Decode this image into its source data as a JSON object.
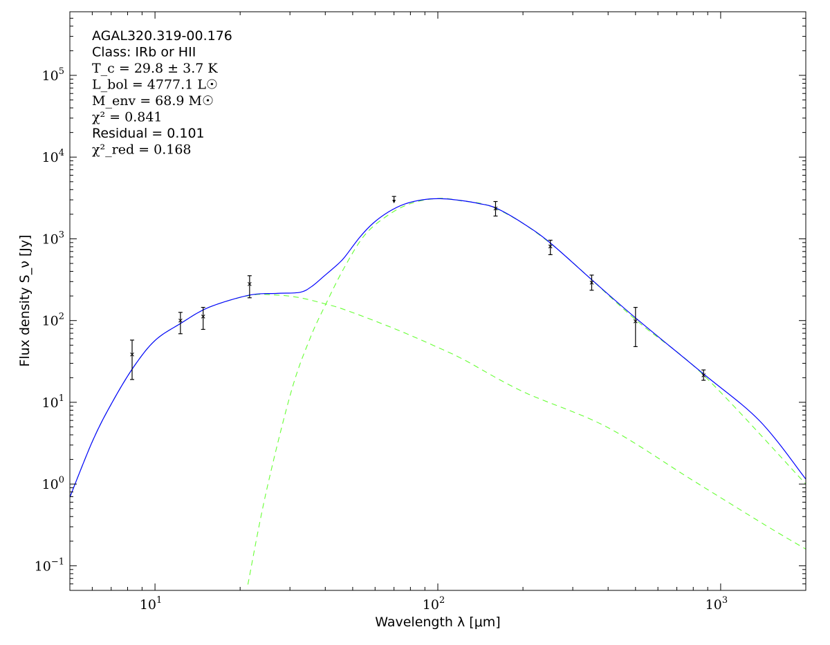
{
  "chart_data": {
    "type": "line",
    "title": "",
    "xlabel": "Wavelength λ [μm]",
    "ylabel": "Flux density S_ν [Jy]",
    "xscale": "log",
    "yscale": "log",
    "xlim": [
      5,
      2000
    ],
    "ylim": [
      0.05,
      600000
    ],
    "grid": false,
    "x_ticks": [
      {
        "value": 10,
        "label": "10",
        "exp": "1"
      },
      {
        "value": 100,
        "label": "10",
        "exp": "2"
      },
      {
        "value": 1000,
        "label": "10",
        "exp": "3"
      }
    ],
    "y_ticks": [
      {
        "value": 0.1,
        "label": "10",
        "exp": "−1"
      },
      {
        "value": 1,
        "label": "10",
        "exp": "0"
      },
      {
        "value": 10,
        "label": "10",
        "exp": "1"
      },
      {
        "value": 100,
        "label": "10",
        "exp": "2"
      },
      {
        "value": 1000,
        "label": "10",
        "exp": "3"
      },
      {
        "value": 10000,
        "label": "10",
        "exp": "4"
      },
      {
        "value": 100000,
        "label": "10",
        "exp": "5"
      }
    ],
    "annotations": [
      {
        "text": "AGAL320.319-00.176",
        "style": "sans"
      },
      {
        "text": "Class: IRb or HII",
        "style": "sans"
      },
      {
        "text": "T_c = 29.8 ± 3.7 K",
        "style": "math"
      },
      {
        "text": "L_bol = 4777.1 L☉",
        "style": "math"
      },
      {
        "text": "M_env = 68.9 M☉",
        "style": "math"
      },
      {
        "text": "χ² = 0.841",
        "style": "math"
      },
      {
        "text": "Residual = 0.101",
        "style": "sans"
      },
      {
        "text": "χ²_red = 0.168",
        "style": "math"
      }
    ],
    "points": [
      {
        "x": 8.3,
        "y": 38.5,
        "lo": 19,
        "hi": 57.7
      },
      {
        "x": 12.3,
        "y": 100,
        "lo": 69,
        "hi": 126
      },
      {
        "x": 14.8,
        "y": 112,
        "lo": 78,
        "hi": 145
      },
      {
        "x": 21.6,
        "y": 280,
        "lo": 190,
        "hi": 354
      },
      {
        "x": 160,
        "y": 2350,
        "lo": 1900,
        "hi": 2860
      },
      {
        "x": 250,
        "y": 807,
        "lo": 640,
        "hi": 962
      },
      {
        "x": 350,
        "y": 291,
        "lo": 235,
        "hi": 360
      },
      {
        "x": 500,
        "y": 98,
        "lo": 48,
        "hi": 145
      },
      {
        "x": 870,
        "y": 21.4,
        "lo": 18.6,
        "hi": 24.9
      }
    ],
    "upper_limits": [
      {
        "x": 70,
        "y": 3300
      }
    ],
    "series": [
      {
        "key": "total",
        "color": "#0000ff",
        "dash": "solid",
        "x": [
          5,
          6,
          7,
          8.4,
          10,
          12.3,
          15.5,
          21.6,
          27,
          32.6,
          36,
          39.5,
          44.9,
          47.4,
          53,
          59,
          67,
          76,
          88,
          102,
          120,
          140,
          161,
          200,
          250,
          350,
          500,
          860,
          1375,
          2000
        ],
        "y": [
          0.69,
          3.3,
          9.5,
          27,
          57,
          92,
          145,
          205,
          215,
          222,
          265,
          347,
          510,
          630,
          1050,
          1550,
          2140,
          2650,
          3000,
          3100,
          2950,
          2700,
          2370,
          1550,
          890,
          316,
          108,
          23,
          5.9,
          1.15
        ]
      },
      {
        "key": "warm",
        "color": "#66ff33",
        "dash": "dashed",
        "x": [
          5,
          6,
          7,
          8.4,
          10,
          12.3,
          15.5,
          21.6,
          27,
          32.6,
          40,
          47.4,
          70,
          100,
          124,
          200,
          395,
          800,
          1448,
          2000
        ],
        "y": [
          0.69,
          3.3,
          9.5,
          27,
          57,
          92,
          145,
          203,
          205,
          190,
          160,
          134,
          80,
          47,
          33,
          13.5,
          5.0,
          1.1,
          0.31,
          0.16
        ]
      },
      {
        "key": "cold",
        "color": "#66ff33",
        "dash": "dashed",
        "x": [
          21.3,
          24.7,
          30.3,
          35.3,
          40.2,
          46.7,
          55,
          66,
          80,
          100,
          120,
          161,
          250,
          500,
          870,
          2000
        ],
        "y": [
          0.059,
          0.79,
          13.5,
          60,
          160,
          445,
          1100,
          1900,
          2700,
          3120,
          2930,
          2340,
          880,
          103,
          21.5,
          1.0
        ]
      }
    ]
  }
}
